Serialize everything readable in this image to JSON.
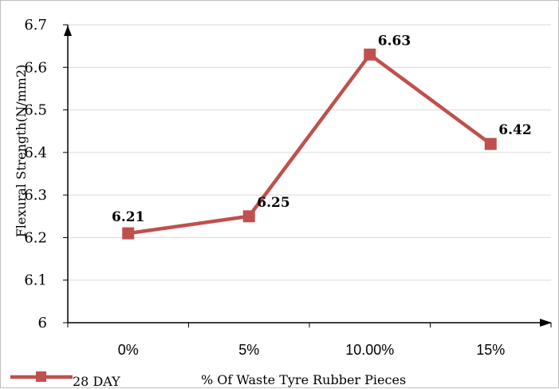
{
  "chart_data": {
    "type": "line",
    "categories": [
      "0%",
      "5%",
      "10.00%",
      "15%"
    ],
    "series": [
      {
        "name": "28 DAY",
        "values": [
          6.21,
          6.25,
          6.63,
          6.42
        ],
        "color": "#c0504d"
      }
    ],
    "data_labels": [
      "6.21",
      "6.25",
      "6.63",
      "6.42"
    ],
    "xlabel": "% Of  Waste Tyre Rubber Pieces",
    "ylabel": "Flexural Strength(N/mm2)",
    "ylim": [
      6,
      6.7
    ],
    "yticks": [
      "6",
      "6.1",
      "6.2",
      "6.3",
      "6.4",
      "6.5",
      "6.6",
      "6.7"
    ],
    "grid": true,
    "legend_position": "bottom-left",
    "gridline_color": "#d9d9d9",
    "axis_color": "#000000"
  }
}
